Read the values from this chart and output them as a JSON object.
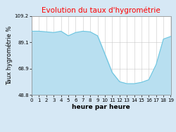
{
  "title": "Evolution du taux d'hygrométrie",
  "xlabel": "heure par heure",
  "ylabel": "Taux hygrométrie %",
  "ylim": [
    48.8,
    109.2
  ],
  "yticks": [
    48.8,
    68.9,
    89.1,
    109.2
  ],
  "xticks": [
    0,
    1,
    2,
    3,
    4,
    5,
    6,
    7,
    8,
    9,
    10,
    11,
    12,
    13,
    14,
    15,
    16,
    17,
    18,
    19
  ],
  "hours": [
    0,
    1,
    2,
    3,
    4,
    5,
    6,
    7,
    8,
    9,
    10,
    11,
    12,
    13,
    14,
    15,
    16,
    17,
    18,
    19
  ],
  "values": [
    97.5,
    97.5,
    97.0,
    96.5,
    97.5,
    94.0,
    96.5,
    97.5,
    97.0,
    94.0,
    80.0,
    66.0,
    59.0,
    57.5,
    57.5,
    58.5,
    60.5,
    72.0,
    91.5,
    93.5
  ],
  "line_color": "#6cc5e0",
  "fill_color": "#b8dff0",
  "title_color": "#ff0000",
  "bg_color": "#d6e8f5",
  "plot_bg_color": "#ffffff",
  "grid_color": "#c8c8c8",
  "title_fontsize": 7.5,
  "label_fontsize": 6,
  "tick_fontsize": 5,
  "xlabel_fontsize": 6.5
}
